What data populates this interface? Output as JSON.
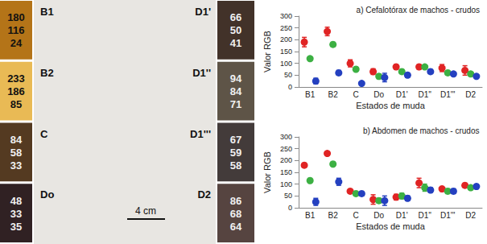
{
  "photo_panel": {
    "left_swatches": [
      {
        "label": "B1",
        "rgb": [
          180,
          116,
          24
        ]
      },
      {
        "label": "B2",
        "rgb": [
          233,
          186,
          85
        ]
      },
      {
        "label": "C",
        "rgb": [
          84,
          58,
          33
        ]
      },
      {
        "label": "Do",
        "rgb": [
          48,
          33,
          35
        ]
      }
    ],
    "right_swatches": [
      {
        "label": "D1'",
        "rgb": [
          66,
          50,
          41
        ]
      },
      {
        "label": "D1''",
        "rgb": [
          94,
          84,
          71
        ]
      },
      {
        "label": "D1'''",
        "rgb": [
          67,
          59,
          58
        ]
      },
      {
        "label": "D2",
        "rgb": [
          86,
          68,
          64
        ]
      }
    ],
    "scale_bar": "4 cm"
  },
  "chart_data": [
    {
      "type": "scatter",
      "title": "a) Cefalotórax de machos - crudos",
      "x_label": "Estados de muda",
      "y_label": "Valor RGB",
      "categories": [
        "B1",
        "B2",
        "C",
        "Do",
        "D1'",
        "D1''",
        "D1'''",
        "D2"
      ],
      "ylim": [
        0,
        300
      ],
      "yticks": [
        0,
        50,
        100,
        150,
        200,
        250,
        300
      ],
      "grid": false,
      "marker": "circle",
      "series": [
        {
          "color": "#e02424",
          "values": [
            190,
            235,
            100,
            65,
            85,
            85,
            80,
            70
          ],
          "errors": [
            20,
            18,
            15,
            12,
            10,
            10,
            15,
            20
          ]
        },
        {
          "color": "#3cb043",
          "values": [
            120,
            180,
            75,
            45,
            65,
            85,
            60,
            55
          ],
          "errors": [
            8,
            8,
            8,
            10,
            8,
            8,
            8,
            8
          ]
        },
        {
          "color": "#2440c0",
          "values": [
            25,
            60,
            15,
            40,
            50,
            65,
            55,
            45
          ],
          "errors": [
            12,
            10,
            6,
            18,
            10,
            8,
            8,
            8
          ]
        }
      ]
    },
    {
      "type": "scatter",
      "title": "b) Abdomen de machos - crudos",
      "x_label": "Estados de muda",
      "y_label": "Valor RGB",
      "categories": [
        "B1",
        "B2",
        "C",
        "Do",
        "D1'",
        "D1''",
        "D1'''",
        "D2"
      ],
      "ylim": [
        0,
        300
      ],
      "yticks": [
        0,
        50,
        100,
        150,
        200,
        250,
        300
      ],
      "grid": false,
      "marker": "circle",
      "series": [
        {
          "color": "#e02424",
          "values": [
            180,
            230,
            70,
            35,
            45,
            105,
            80,
            95
          ],
          "errors": [
            8,
            8,
            8,
            20,
            12,
            20,
            10,
            8
          ]
        },
        {
          "color": "#3cb043",
          "values": [
            115,
            185,
            60,
            30,
            50,
            85,
            70,
            85
          ],
          "errors": [
            8,
            8,
            8,
            10,
            12,
            15,
            10,
            8
          ]
        },
        {
          "color": "#2440c0",
          "values": [
            25,
            110,
            60,
            30,
            40,
            75,
            70,
            90
          ],
          "errors": [
            15,
            15,
            8,
            20,
            10,
            10,
            10,
            10
          ]
        }
      ]
    }
  ]
}
